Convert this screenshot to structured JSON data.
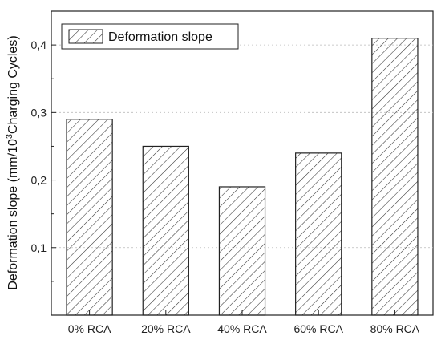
{
  "chart_data": {
    "type": "bar",
    "categories": [
      "0% RCA",
      "20% RCA",
      "40% RCA",
      "60% RCA",
      "80% RCA"
    ],
    "series": [
      {
        "name": "Deformation slope",
        "values": [
          0.29,
          0.25,
          0.19,
          0.24,
          0.41
        ]
      }
    ],
    "ylabel": {
      "pre": "Deformation slope (mm/10",
      "sup": "3",
      "post": "Charging Cycles)"
    },
    "xlabel": "",
    "ylim": [
      0.0,
      0.45
    ],
    "y_ticks": [
      {
        "value": 0.1,
        "label": "0,1"
      },
      {
        "value": 0.2,
        "label": "0,2"
      },
      {
        "value": 0.3,
        "label": "0,3"
      },
      {
        "value": 0.4,
        "label": "0,4"
      }
    ],
    "grid": true,
    "legend_position": "top-left",
    "bar_fill": "hatched",
    "colors": {
      "bar_stroke": "#222222",
      "hatch": "#333333",
      "grid": "#bbbbbb",
      "axis": "#222222"
    }
  }
}
